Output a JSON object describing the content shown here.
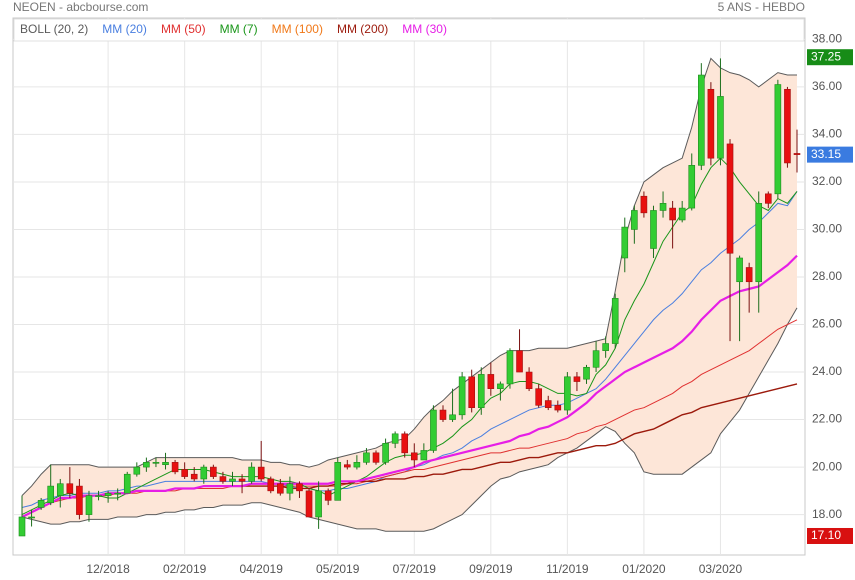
{
  "chart_data": {
    "type": "candlestick",
    "title": "NEOEN - abcbourse.com",
    "subtitle": "5 ANS - HEBDO",
    "categories": [
      null,
      null,
      null,
      null,
      null,
      null,
      null,
      null,
      null,
      "12/2018",
      null,
      null,
      null,
      null,
      null,
      null,
      null,
      "02/2019",
      null,
      null,
      null,
      null,
      null,
      null,
      null,
      "04/2019",
      null,
      null,
      null,
      null,
      null,
      null,
      null,
      "05/2019",
      null,
      null,
      null,
      null,
      null,
      null,
      null,
      "07/2019",
      null,
      null,
      null,
      null,
      null,
      null,
      null,
      "09/2019",
      null,
      null,
      null,
      null,
      null,
      null,
      null,
      "11/2019",
      null,
      null,
      null,
      null,
      null,
      null,
      null,
      "01/2020",
      null,
      null,
      null,
      null,
      null,
      null,
      null,
      "03/2020",
      null,
      null,
      null,
      null,
      null,
      null,
      null,
      null
    ],
    "candles": {
      "up_color": "#33cc33",
      "down_color": "#e81010",
      "open": [
        17.1,
        17.9,
        18.3,
        18.5,
        18.8,
        19.3,
        19.2,
        18.0,
        18.8,
        18.8,
        18.9,
        18.9,
        19.7,
        20.0,
        20.2,
        20.1,
        20.2,
        19.9,
        19.7,
        19.5,
        20.0,
        19.6,
        19.4,
        19.5,
        19.4,
        20.0,
        19.5,
        19.3,
        18.9,
        19.3,
        19.0,
        17.9,
        19.0,
        18.6,
        20.1,
        20.0,
        20.2,
        20.6,
        20.2,
        21.0,
        21.4,
        20.6,
        20.3,
        20.7,
        22.4,
        22.0,
        22.2,
        23.8,
        22.5,
        23.9,
        23.3,
        23.5,
        24.9,
        24.0,
        23.3,
        22.8,
        22.6,
        22.4,
        23.8,
        23.7,
        24.2,
        24.9,
        25.2,
        28.8,
        30.0,
        31.4,
        29.2,
        30.8,
        30.9,
        30.4,
        30.9,
        32.7,
        35.9,
        33.0,
        33.6,
        27.8,
        28.4,
        27.8,
        31.5,
        31.5,
        35.9,
        33.2
      ],
      "high": [
        18.8,
        18.2,
        18.7,
        20.1,
        19.5,
        20.0,
        19.5,
        19.0,
        19.0,
        19.0,
        19.1,
        19.8,
        20.2,
        20.4,
        20.4,
        20.6,
        20.3,
        20.2,
        20.0,
        20.1,
        20.1,
        19.8,
        19.8,
        19.7,
        20.2,
        21.1,
        19.6,
        19.5,
        19.6,
        19.4,
        19.1,
        19.4,
        19.1,
        20.4,
        20.3,
        20.5,
        20.8,
        20.7,
        21.2,
        21.5,
        21.5,
        21.0,
        21.0,
        22.6,
        22.6,
        23.3,
        24.0,
        24.1,
        24.2,
        24.4,
        23.6,
        25.0,
        25.8,
        24.2,
        23.5,
        23.0,
        22.8,
        24.0,
        24.0,
        24.3,
        25.3,
        25.5,
        27.3,
        30.5,
        31.0,
        31.6,
        31.0,
        31.6,
        31.2,
        31.2,
        33.2,
        37.0,
        36.2,
        37.2,
        33.8,
        28.9,
        28.6,
        31.6,
        31.6,
        36.3,
        36.0,
        34.2
      ],
      "low": [
        17.1,
        17.5,
        18.2,
        18.4,
        18.3,
        18.7,
        17.8,
        17.7,
        18.6,
        18.5,
        18.6,
        18.9,
        19.6,
        19.8,
        20.0,
        19.9,
        19.7,
        19.5,
        19.4,
        19.3,
        19.5,
        19.3,
        19.2,
        18.9,
        19.3,
        19.4,
        18.9,
        18.8,
        18.6,
        18.7,
        17.9,
        17.4,
        18.4,
        18.6,
        19.9,
        19.9,
        20.1,
        20.1,
        20.1,
        20.8,
        20.4,
        20.0,
        20.3,
        20.6,
        21.9,
        21.9,
        22.0,
        22.3,
        22.2,
        23.0,
        22.8,
        23.3,
        24.0,
        23.2,
        22.5,
        22.4,
        22.3,
        22.2,
        23.2,
        23.5,
        24.0,
        24.6,
        25.0,
        28.2,
        29.4,
        30.5,
        28.8,
        30.5,
        29.2,
        30.3,
        30.8,
        32.5,
        32.7,
        32.7,
        25.3,
        25.3,
        26.5,
        26.5,
        30.9,
        31.3,
        32.6,
        32.4
      ],
      "close": [
        17.9,
        17.9,
        18.6,
        19.2,
        19.3,
        18.9,
        18.0,
        18.8,
        18.8,
        18.9,
        18.9,
        19.7,
        20.0,
        20.2,
        20.2,
        20.2,
        19.8,
        19.6,
        19.5,
        20.0,
        19.6,
        19.4,
        19.5,
        19.4,
        20.0,
        19.5,
        19.0,
        18.9,
        19.3,
        19.0,
        17.9,
        19.0,
        18.6,
        20.2,
        20.0,
        20.2,
        20.6,
        20.2,
        21.0,
        21.4,
        20.6,
        20.3,
        20.7,
        22.4,
        22.0,
        22.2,
        23.8,
        22.5,
        23.9,
        23.3,
        23.5,
        24.9,
        24.0,
        23.3,
        22.6,
        22.5,
        22.4,
        23.8,
        23.6,
        24.2,
        24.9,
        25.2,
        27.1,
        30.1,
        30.8,
        30.7,
        30.8,
        31.1,
        30.4,
        30.9,
        32.7,
        36.5,
        33.0,
        35.6,
        29.0,
        28.8,
        27.8,
        31.1,
        31.1,
        36.1,
        32.8,
        33.15
      ]
    },
    "bands": {
      "name": "BOLL (20, 2)",
      "color": "#5a5a5a",
      "fill": "#fde6d8",
      "upper": [
        18.8,
        19.2,
        19.7,
        20.1,
        20.1,
        20.1,
        20.1,
        20.1,
        20.0,
        20.0,
        20.0,
        20.0,
        20.0,
        20.2,
        20.4,
        20.4,
        20.4,
        20.4,
        20.4,
        20.4,
        20.4,
        20.4,
        20.4,
        20.3,
        20.3,
        20.3,
        20.2,
        20.2,
        20.1,
        20.1,
        20.0,
        20.1,
        20.3,
        20.4,
        20.5,
        20.6,
        20.7,
        20.8,
        21.0,
        21.1,
        21.2,
        21.6,
        22.1,
        22.5,
        22.8,
        23.2,
        23.5,
        23.8,
        24.1,
        24.4,
        24.7,
        24.9,
        24.9,
        24.9,
        25.0,
        25.0,
        25.0,
        25.0,
        25.1,
        25.2,
        25.3,
        25.4,
        27.4,
        29.6,
        31.0,
        32.0,
        32.3,
        32.6,
        32.8,
        33.0,
        34.3,
        36.0,
        37.2,
        36.8,
        36.6,
        36.5,
        36.3,
        36.0,
        36.3,
        36.6,
        36.5,
        36.5
      ],
      "lower": [
        17.9,
        17.8,
        17.7,
        17.6,
        17.6,
        17.7,
        17.7,
        17.8,
        17.8,
        17.8,
        17.9,
        17.9,
        17.9,
        18.0,
        18.0,
        18.1,
        18.1,
        18.2,
        18.2,
        18.3,
        18.3,
        18.4,
        18.4,
        18.4,
        18.5,
        18.5,
        18.4,
        18.3,
        18.2,
        18.1,
        17.9,
        17.8,
        17.7,
        17.6,
        17.5,
        17.4,
        17.4,
        17.4,
        17.3,
        17.3,
        17.3,
        17.3,
        17.3,
        17.4,
        17.6,
        17.8,
        18.0,
        18.4,
        18.8,
        19.2,
        19.5,
        19.6,
        19.8,
        19.9,
        20.0,
        20.1,
        20.4,
        20.6,
        20.8,
        21.1,
        21.4,
        21.7,
        21.5,
        21.0,
        20.6,
        19.8,
        19.7,
        19.7,
        19.7,
        19.7,
        20.0,
        20.3,
        20.6,
        21.4,
        21.9,
        22.4,
        23.1,
        23.8,
        24.5,
        25.2,
        26.0,
        26.7
      ]
    },
    "series": [
      {
        "name": "MM (20)",
        "color": "#4a7fe0",
        "width": 1,
        "values": [
          18.3,
          18.4,
          18.6,
          18.7,
          18.8,
          18.8,
          18.9,
          18.9,
          18.9,
          19.0,
          19.0,
          19.1,
          19.2,
          19.2,
          19.3,
          19.4,
          19.4,
          19.4,
          19.4,
          19.4,
          19.4,
          19.4,
          19.4,
          19.4,
          19.4,
          19.4,
          19.3,
          19.3,
          19.2,
          19.1,
          19.1,
          19.0,
          19.0,
          19.1,
          19.1,
          19.2,
          19.3,
          19.4,
          19.6,
          19.7,
          19.8,
          20.0,
          20.1,
          20.3,
          20.5,
          20.6,
          20.8,
          21.1,
          21.3,
          21.6,
          21.8,
          22.0,
          22.2,
          22.4,
          22.5,
          22.6,
          22.6,
          22.7,
          22.9,
          23.1,
          23.3,
          23.7,
          24.2,
          24.7,
          25.2,
          25.7,
          26.2,
          26.6,
          26.9,
          27.3,
          27.8,
          28.3,
          28.6,
          29.0,
          29.3,
          29.6,
          30.0,
          30.3,
          30.7,
          31.1,
          31.0,
          31.6
        ]
      },
      {
        "name": "MM (50)",
        "color": "#e03030",
        "width": 1,
        "values": [
          17.9,
          18.1,
          18.3,
          18.5,
          18.6,
          18.7,
          18.7,
          18.8,
          18.8,
          18.8,
          18.9,
          18.9,
          18.9,
          19.0,
          19.0,
          19.0,
          19.0,
          19.1,
          19.1,
          19.1,
          19.1,
          19.1,
          19.2,
          19.2,
          19.2,
          19.2,
          19.2,
          19.2,
          19.2,
          19.2,
          19.2,
          19.2,
          19.2,
          19.2,
          19.3,
          19.3,
          19.4,
          19.5,
          19.6,
          19.7,
          19.8,
          19.9,
          19.9,
          20.0,
          20.1,
          20.2,
          20.3,
          20.4,
          20.5,
          20.6,
          20.6,
          20.7,
          20.8,
          20.8,
          20.9,
          21.0,
          21.1,
          21.2,
          21.4,
          21.5,
          21.7,
          21.8,
          22.0,
          22.2,
          22.4,
          22.5,
          22.7,
          22.9,
          23.1,
          23.4,
          23.6,
          23.9,
          24.1,
          24.3,
          24.5,
          24.7,
          24.9,
          25.2,
          25.5,
          25.8,
          26.0,
          26.2
        ]
      },
      {
        "name": "MM (7)",
        "color": "#1a961a",
        "width": 1,
        "values": [
          18.0,
          18.2,
          18.4,
          18.6,
          18.8,
          18.9,
          18.8,
          18.8,
          18.8,
          18.7,
          18.7,
          18.9,
          19.1,
          19.3,
          19.5,
          19.7,
          19.9,
          19.9,
          19.9,
          19.9,
          19.8,
          19.7,
          19.6,
          19.6,
          19.6,
          19.6,
          19.5,
          19.4,
          19.4,
          19.3,
          19.1,
          19.0,
          18.8,
          19.0,
          19.2,
          19.4,
          19.6,
          19.9,
          20.2,
          20.4,
          20.5,
          20.5,
          20.6,
          20.8,
          21.0,
          21.3,
          21.7,
          22.0,
          22.5,
          22.9,
          23.1,
          23.5,
          23.6,
          23.6,
          23.5,
          23.3,
          23.1,
          23.1,
          23.0,
          23.1,
          23.9,
          24.3,
          25.0,
          26.2,
          27.0,
          27.7,
          28.6,
          29.5,
          30.1,
          30.7,
          31.0,
          31.9,
          32.6,
          33.0,
          32.6,
          32.0,
          31.5,
          31.0,
          30.8,
          31.3,
          31.1,
          31.6
        ]
      },
      {
        "name": "MM (100)",
        "color": "#f07818",
        "width": 1,
        "values": [
          null,
          null,
          null,
          null,
          null,
          null,
          null,
          null,
          null,
          null,
          null,
          null,
          null,
          null,
          null,
          null,
          null,
          null,
          null,
          null,
          null,
          null,
          null,
          null,
          null,
          null,
          null,
          null,
          null,
          null,
          null,
          null,
          null,
          null,
          null,
          null,
          null,
          null,
          null,
          null,
          null,
          null,
          null,
          null,
          null,
          null,
          null,
          null,
          null,
          null,
          null,
          null,
          null,
          null,
          null,
          null,
          null,
          null,
          null,
          null,
          null,
          null,
          null,
          null,
          null,
          null,
          null,
          null,
          null,
          null,
          null,
          null,
          null,
          null,
          null,
          null,
          null,
          null,
          null,
          null,
          null,
          null
        ]
      },
      {
        "name": "MM (200)",
        "color": "#9c1a0c",
        "width": 1.4,
        "values": [
          null,
          null,
          null,
          null,
          null,
          null,
          null,
          null,
          null,
          null,
          null,
          null,
          null,
          null,
          null,
          null,
          null,
          null,
          null,
          null,
          19.2,
          19.2,
          19.2,
          19.2,
          19.2,
          19.2,
          19.2,
          19.2,
          19.1,
          19.1,
          19.1,
          19.2,
          19.2,
          19.3,
          19.3,
          19.4,
          19.4,
          19.4,
          19.5,
          19.5,
          19.5,
          19.6,
          19.6,
          19.7,
          19.7,
          19.8,
          19.9,
          19.9,
          20.0,
          20.1,
          20.2,
          20.2,
          20.3,
          20.4,
          20.4,
          20.5,
          20.6,
          20.6,
          20.7,
          20.8,
          20.9,
          20.9,
          21.0,
          21.2,
          21.4,
          21.5,
          21.6,
          21.8,
          22.0,
          22.2,
          22.3,
          22.5,
          22.6,
          22.7,
          22.8,
          22.9,
          23.0,
          23.1,
          23.2,
          23.3,
          23.4,
          23.5
        ]
      },
      {
        "name": "MM (30)",
        "color": "#e61ee6",
        "width": 2.2,
        "values": [
          17.9,
          18.1,
          18.3,
          18.5,
          18.7,
          18.7,
          18.8,
          18.8,
          18.8,
          18.9,
          18.9,
          18.9,
          19.0,
          19.0,
          19.0,
          19.0,
          19.1,
          19.1,
          19.1,
          19.2,
          19.2,
          19.2,
          19.2,
          19.2,
          19.3,
          19.3,
          19.3,
          19.3,
          19.3,
          19.3,
          19.3,
          19.3,
          19.3,
          19.4,
          19.4,
          19.4,
          19.5,
          19.6,
          19.7,
          19.8,
          19.9,
          20.0,
          20.2,
          20.3,
          20.4,
          20.5,
          20.6,
          20.7,
          20.8,
          20.9,
          21.0,
          21.1,
          21.3,
          21.4,
          21.6,
          21.7,
          21.9,
          22.1,
          22.4,
          22.7,
          23.1,
          23.4,
          23.7,
          24.0,
          24.2,
          24.4,
          24.6,
          24.8,
          25.0,
          25.3,
          25.7,
          26.2,
          26.6,
          27.0,
          27.2,
          27.4,
          27.5,
          27.6,
          27.9,
          28.2,
          28.5,
          28.9
        ]
      }
    ],
    "ylim": [
      16.3,
      38.9
    ],
    "yticks": [
      {
        "value": 18,
        "label": "18.00"
      },
      {
        "value": 20,
        "label": "20.00"
      },
      {
        "value": 22,
        "label": "22.00"
      },
      {
        "value": 24,
        "label": "24.00"
      },
      {
        "value": 26,
        "label": "26.00"
      },
      {
        "value": 28,
        "label": "28.00"
      },
      {
        "value": 30,
        "label": "30.00"
      },
      {
        "value": 32,
        "label": "32.00"
      },
      {
        "value": 34,
        "label": "34.00"
      },
      {
        "value": 36,
        "label": "36.00"
      },
      {
        "value": 38,
        "label": "38.00"
      }
    ],
    "grid": true,
    "annotations": [
      {
        "value": 37.25,
        "label": "37.25",
        "color": "#178c17"
      },
      {
        "value": 33.15,
        "label": "33.15",
        "color": "#3a7be0"
      },
      {
        "value": 17.1,
        "label": "17.10",
        "color": "#d81010"
      }
    ]
  }
}
